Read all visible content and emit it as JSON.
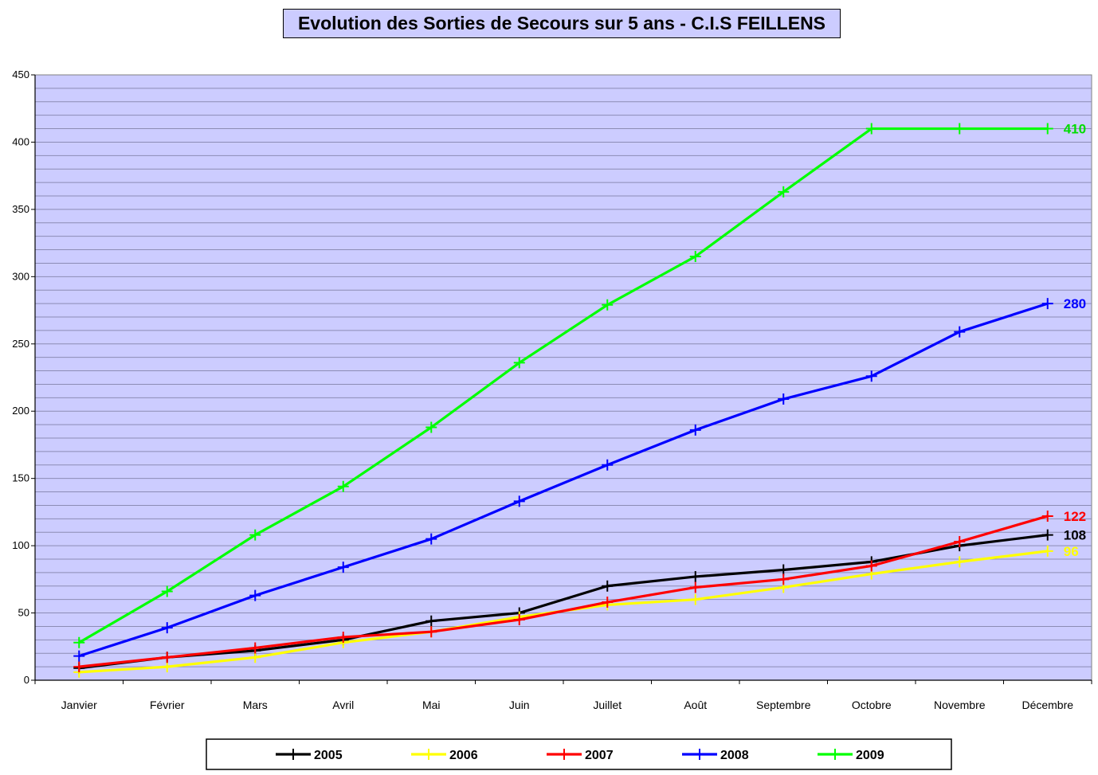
{
  "chart_data": {
    "type": "line",
    "title": "Evolution des Sorties de Secours sur 5 ans - C.I.S FEILLENS",
    "xlabel": "",
    "ylabel": "",
    "ylim": [
      0,
      450
    ],
    "yticks": [
      0,
      50,
      100,
      150,
      200,
      250,
      300,
      350,
      400,
      450
    ],
    "grid": true,
    "legend_position": "bottom",
    "categories": [
      "Janvier",
      "Février",
      "Mars",
      "Avril",
      "Mai",
      "Juin",
      "Juillet",
      "Août",
      "Septembre",
      "Octobre",
      "Novembre",
      "Décembre"
    ],
    "series": [
      {
        "name": "2005",
        "color": "#000000",
        "values": [
          9,
          17,
          22,
          30,
          44,
          50,
          70,
          77,
          82,
          88,
          100,
          108
        ],
        "end_label": "108",
        "end_color": "#000000"
      },
      {
        "name": "2006",
        "color": "#ffff00",
        "values": [
          6,
          10,
          17,
          28,
          36,
          47,
          56,
          60,
          69,
          79,
          88,
          96
        ],
        "end_label": "96",
        "end_color": "#ffff00"
      },
      {
        "name": "2007",
        "color": "#ff0000",
        "values": [
          10,
          17,
          24,
          32,
          36,
          45,
          58,
          69,
          75,
          85,
          103,
          122
        ],
        "end_label": "122",
        "end_color": "#ff0000"
      },
      {
        "name": "2008",
        "color": "#0000ff",
        "values": [
          18,
          39,
          63,
          84,
          105,
          133,
          160,
          186,
          209,
          226,
          259,
          280
        ],
        "end_label": "280",
        "end_color": "#0000ff"
      },
      {
        "name": "2009",
        "color": "#00ff00",
        "values": [
          28,
          66,
          108,
          144,
          188,
          236,
          279,
          315,
          363,
          410,
          410,
          410
        ],
        "end_label": "410",
        "end_color": "#00dd00"
      }
    ]
  }
}
